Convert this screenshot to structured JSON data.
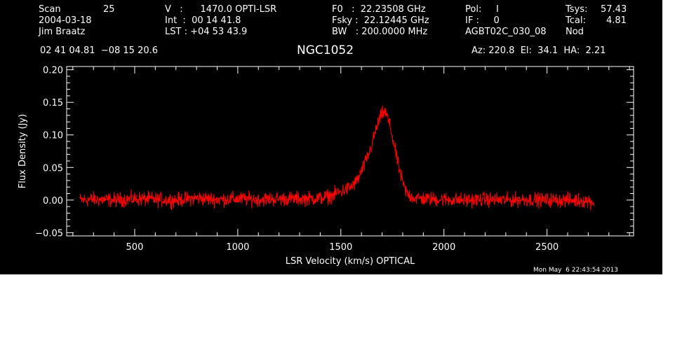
{
  "header": {
    "scan_label": "Scan",
    "scan_value": "25",
    "date": "2004-03-18",
    "observer": "Jim Braatz",
    "v_line": "V   :      1470.0 OPTI-LSR",
    "int_line": "Int  :  00 14 41.8",
    "lst_line": "LST : +04 53 43.9",
    "f0_line": "F0   :  22.23508 GHz",
    "fsky_line": "Fsky :  22.12445 GHz",
    "bw_line": "BW   : 200.0000 MHz",
    "pol_line": "Pol:     I",
    "if_line": "IF :     0",
    "project": "AGBT02C_030_08",
    "tsys_label": "Tsys:",
    "tsys_value": "57.43",
    "tcal_label": "Tcal:",
    "tcal_value": "4.81",
    "mode": "Nod",
    "coords": "02 41 04.81  −08 15 20.6",
    "source": "NGC1052",
    "az_el_ha": "Az: 220.8  El:  34.1  HA:  2.21"
  },
  "timestamp": "Mon May  6 22:43:54 2013",
  "colors": {
    "background": "#000000",
    "axes": "#ffffff",
    "trace": "#ff0000"
  },
  "chart_data": {
    "type": "line",
    "title": "NGC1052",
    "xlabel": "LSR Velocity (km/s) OPTICAL",
    "ylabel": "Flux Density (Jy)",
    "xlim": [
      170,
      2920
    ],
    "ylim": [
      -0.055,
      0.205
    ],
    "xticks": [
      500,
      1000,
      1500,
      2000,
      2500
    ],
    "xtick_labels": [
      "500",
      "1000",
      "1500",
      "2000",
      "2500"
    ],
    "yticks": [
      -0.05,
      0.0,
      0.05,
      0.1,
      0.15,
      0.2
    ],
    "ytick_labels": [
      "−0.05",
      "0.00",
      "0.05",
      "0.10",
      "0.15",
      "0.20"
    ],
    "grid": false,
    "legend": "none",
    "series": [
      {
        "x": [
          235,
          300,
          400,
          500,
          600,
          700,
          800,
          900,
          1000,
          1100,
          1200,
          1300,
          1400,
          1450,
          1500,
          1550,
          1580,
          1600,
          1620,
          1640,
          1660,
          1680,
          1700,
          1710,
          1720,
          1740,
          1760,
          1780,
          1800,
          1820,
          1850,
          1900,
          2000,
          2100,
          2200,
          2300,
          2400,
          2500,
          2600,
          2700,
          2730
        ],
        "y": [
          0.0,
          0.001,
          0.0,
          0.002,
          0.001,
          0.0,
          0.003,
          0.001,
          0.002,
          0.001,
          0.002,
          0.002,
          0.003,
          0.006,
          0.013,
          0.02,
          0.03,
          0.044,
          0.058,
          0.075,
          0.096,
          0.118,
          0.132,
          0.136,
          0.132,
          0.112,
          0.082,
          0.052,
          0.026,
          0.01,
          0.004,
          0.002,
          0.001,
          0.0,
          0.001,
          0.0,
          0.001,
          0.0,
          0.0,
          -0.001,
          -0.004
        ]
      }
    ]
  }
}
